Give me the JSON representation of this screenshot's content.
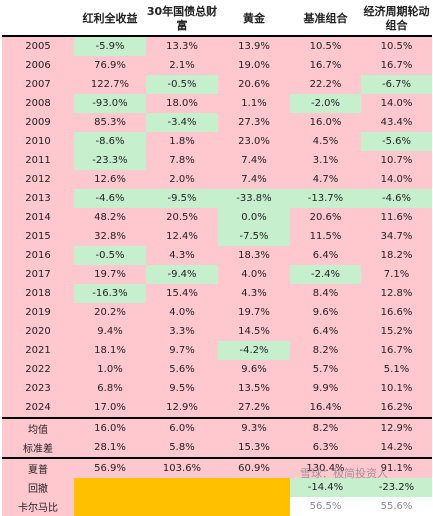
{
  "table": {
    "headers": [
      "",
      "红利全收益",
      "30年国债总财富",
      "黄金",
      "基准组合",
      "经济周期轮动组合"
    ],
    "year_rows": [
      {
        "label": "2005",
        "cells": [
          {
            "v": "-5.9%",
            "c": "g"
          },
          {
            "v": "13.3%",
            "c": ""
          },
          {
            "v": "13.9%",
            "c": ""
          },
          {
            "v": "10.5%",
            "c": ""
          },
          {
            "v": "10.5%",
            "c": ""
          }
        ]
      },
      {
        "label": "2006",
        "cells": [
          {
            "v": "76.9%",
            "c": ""
          },
          {
            "v": "2.1%",
            "c": ""
          },
          {
            "v": "19.0%",
            "c": ""
          },
          {
            "v": "16.7%",
            "c": ""
          },
          {
            "v": "16.7%",
            "c": ""
          }
        ]
      },
      {
        "label": "2007",
        "cells": [
          {
            "v": "122.7%",
            "c": ""
          },
          {
            "v": "-0.5%",
            "c": "g"
          },
          {
            "v": "20.6%",
            "c": ""
          },
          {
            "v": "22.2%",
            "c": ""
          },
          {
            "v": "-6.7%",
            "c": "g"
          }
        ]
      },
      {
        "label": "2008",
        "cells": [
          {
            "v": "-93.0%",
            "c": "g"
          },
          {
            "v": "18.0%",
            "c": ""
          },
          {
            "v": "1.1%",
            "c": ""
          },
          {
            "v": "-2.0%",
            "c": "g"
          },
          {
            "v": "14.0%",
            "c": ""
          }
        ]
      },
      {
        "label": "2009",
        "cells": [
          {
            "v": "85.3%",
            "c": ""
          },
          {
            "v": "-3.4%",
            "c": "g"
          },
          {
            "v": "27.3%",
            "c": ""
          },
          {
            "v": "16.0%",
            "c": ""
          },
          {
            "v": "43.4%",
            "c": ""
          }
        ]
      },
      {
        "label": "2010",
        "cells": [
          {
            "v": "-8.6%",
            "c": "g"
          },
          {
            "v": "1.8%",
            "c": ""
          },
          {
            "v": "23.0%",
            "c": ""
          },
          {
            "v": "4.5%",
            "c": ""
          },
          {
            "v": "-5.6%",
            "c": "g"
          }
        ]
      },
      {
        "label": "2011",
        "cells": [
          {
            "v": "-23.3%",
            "c": "g"
          },
          {
            "v": "7.8%",
            "c": ""
          },
          {
            "v": "7.4%",
            "c": ""
          },
          {
            "v": "3.1%",
            "c": ""
          },
          {
            "v": "10.7%",
            "c": ""
          }
        ]
      },
      {
        "label": "2012",
        "cells": [
          {
            "v": "12.6%",
            "c": ""
          },
          {
            "v": "2.0%",
            "c": ""
          },
          {
            "v": "7.4%",
            "c": ""
          },
          {
            "v": "4.7%",
            "c": ""
          },
          {
            "v": "14.0%",
            "c": ""
          }
        ]
      },
      {
        "label": "2013",
        "cells": [
          {
            "v": "-4.6%",
            "c": "g"
          },
          {
            "v": "-9.5%",
            "c": "g"
          },
          {
            "v": "-33.8%",
            "c": "g"
          },
          {
            "v": "-13.7%",
            "c": "g"
          },
          {
            "v": "-4.6%",
            "c": "g"
          }
        ]
      },
      {
        "label": "2014",
        "cells": [
          {
            "v": "48.2%",
            "c": ""
          },
          {
            "v": "20.5%",
            "c": ""
          },
          {
            "v": "0.0%",
            "c": "g"
          },
          {
            "v": "20.6%",
            "c": ""
          },
          {
            "v": "11.6%",
            "c": ""
          }
        ]
      },
      {
        "label": "2015",
        "cells": [
          {
            "v": "32.8%",
            "c": ""
          },
          {
            "v": "12.4%",
            "c": ""
          },
          {
            "v": "-7.5%",
            "c": "g"
          },
          {
            "v": "11.5%",
            "c": ""
          },
          {
            "v": "34.7%",
            "c": ""
          }
        ]
      },
      {
        "label": "2016",
        "cells": [
          {
            "v": "-0.5%",
            "c": "g"
          },
          {
            "v": "4.3%",
            "c": ""
          },
          {
            "v": "18.3%",
            "c": ""
          },
          {
            "v": "6.4%",
            "c": ""
          },
          {
            "v": "18.2%",
            "c": ""
          }
        ]
      },
      {
        "label": "2017",
        "cells": [
          {
            "v": "19.7%",
            "c": ""
          },
          {
            "v": "-9.4%",
            "c": "g"
          },
          {
            "v": "4.0%",
            "c": ""
          },
          {
            "v": "-2.4%",
            "c": "g"
          },
          {
            "v": "7.1%",
            "c": ""
          }
        ]
      },
      {
        "label": "2018",
        "cells": [
          {
            "v": "-16.3%",
            "c": "g"
          },
          {
            "v": "15.4%",
            "c": ""
          },
          {
            "v": "4.3%",
            "c": ""
          },
          {
            "v": "8.4%",
            "c": ""
          },
          {
            "v": "12.8%",
            "c": ""
          }
        ]
      },
      {
        "label": "2019",
        "cells": [
          {
            "v": "20.2%",
            "c": ""
          },
          {
            "v": "4.0%",
            "c": ""
          },
          {
            "v": "19.7%",
            "c": ""
          },
          {
            "v": "9.6%",
            "c": ""
          },
          {
            "v": "16.6%",
            "c": ""
          }
        ]
      },
      {
        "label": "2020",
        "cells": [
          {
            "v": "9.4%",
            "c": ""
          },
          {
            "v": "3.3%",
            "c": ""
          },
          {
            "v": "14.5%",
            "c": ""
          },
          {
            "v": "6.4%",
            "c": ""
          },
          {
            "v": "15.2%",
            "c": ""
          }
        ]
      },
      {
        "label": "2021",
        "cells": [
          {
            "v": "18.1%",
            "c": ""
          },
          {
            "v": "9.7%",
            "c": ""
          },
          {
            "v": "-4.2%",
            "c": "g"
          },
          {
            "v": "8.2%",
            "c": ""
          },
          {
            "v": "16.7%",
            "c": ""
          }
        ]
      },
      {
        "label": "2022",
        "cells": [
          {
            "v": "1.0%",
            "c": ""
          },
          {
            "v": "5.6%",
            "c": ""
          },
          {
            "v": "9.6%",
            "c": ""
          },
          {
            "v": "5.7%",
            "c": ""
          },
          {
            "v": "5.1%",
            "c": ""
          }
        ]
      },
      {
        "label": "2023",
        "cells": [
          {
            "v": "6.8%",
            "c": ""
          },
          {
            "v": "9.5%",
            "c": ""
          },
          {
            "v": "13.5%",
            "c": ""
          },
          {
            "v": "9.9%",
            "c": ""
          },
          {
            "v": "10.1%",
            "c": ""
          }
        ]
      },
      {
        "label": "2024",
        "cells": [
          {
            "v": "17.0%",
            "c": ""
          },
          {
            "v": "12.9%",
            "c": ""
          },
          {
            "v": "27.2%",
            "c": ""
          },
          {
            "v": "16.4%",
            "c": ""
          },
          {
            "v": "16.2%",
            "c": ""
          }
        ]
      }
    ],
    "stat_rows": [
      {
        "label": "均值",
        "cells": [
          {
            "v": "16.0%",
            "c": ""
          },
          {
            "v": "6.0%",
            "c": ""
          },
          {
            "v": "9.3%",
            "c": ""
          },
          {
            "v": "8.2%",
            "c": ""
          },
          {
            "v": "12.9%",
            "c": ""
          }
        ]
      },
      {
        "label": "标准差",
        "cells": [
          {
            "v": "28.1%",
            "c": ""
          },
          {
            "v": "5.8%",
            "c": ""
          },
          {
            "v": "15.3%",
            "c": ""
          },
          {
            "v": "6.3%",
            "c": ""
          },
          {
            "v": "14.2%",
            "c": ""
          }
        ]
      }
    ],
    "ratio_rows": [
      {
        "label": "夏普",
        "cells": [
          {
            "v": "56.9%",
            "c": ""
          },
          {
            "v": "103.6%",
            "c": ""
          },
          {
            "v": "60.9%",
            "c": ""
          },
          {
            "v": "130.4%",
            "c": ""
          },
          {
            "v": "91.1%",
            "c": ""
          }
        ]
      },
      {
        "label": "回撤",
        "cells": [
          {
            "v": "",
            "c": "y"
          },
          {
            "v": "",
            "c": "y"
          },
          {
            "v": "",
            "c": "y"
          },
          {
            "v": "-14.4%",
            "c": "g"
          },
          {
            "v": "-23.2%",
            "c": "g"
          }
        ]
      },
      {
        "label": "卡尔马比",
        "cells": [
          {
            "v": "",
            "c": "y"
          },
          {
            "v": "",
            "c": "y"
          },
          {
            "v": "",
            "c": "y"
          },
          {
            "v": "56.5%",
            "c": "w fade"
          },
          {
            "v": "55.6%",
            "c": "w fade"
          }
        ]
      }
    ]
  },
  "watermark": "雪球：极简投资人",
  "colors": {
    "row_pink": "#ffc7ce",
    "neg_green": "#c6efce",
    "na_orange": "#ffc000",
    "header_white": "#ffffff"
  }
}
